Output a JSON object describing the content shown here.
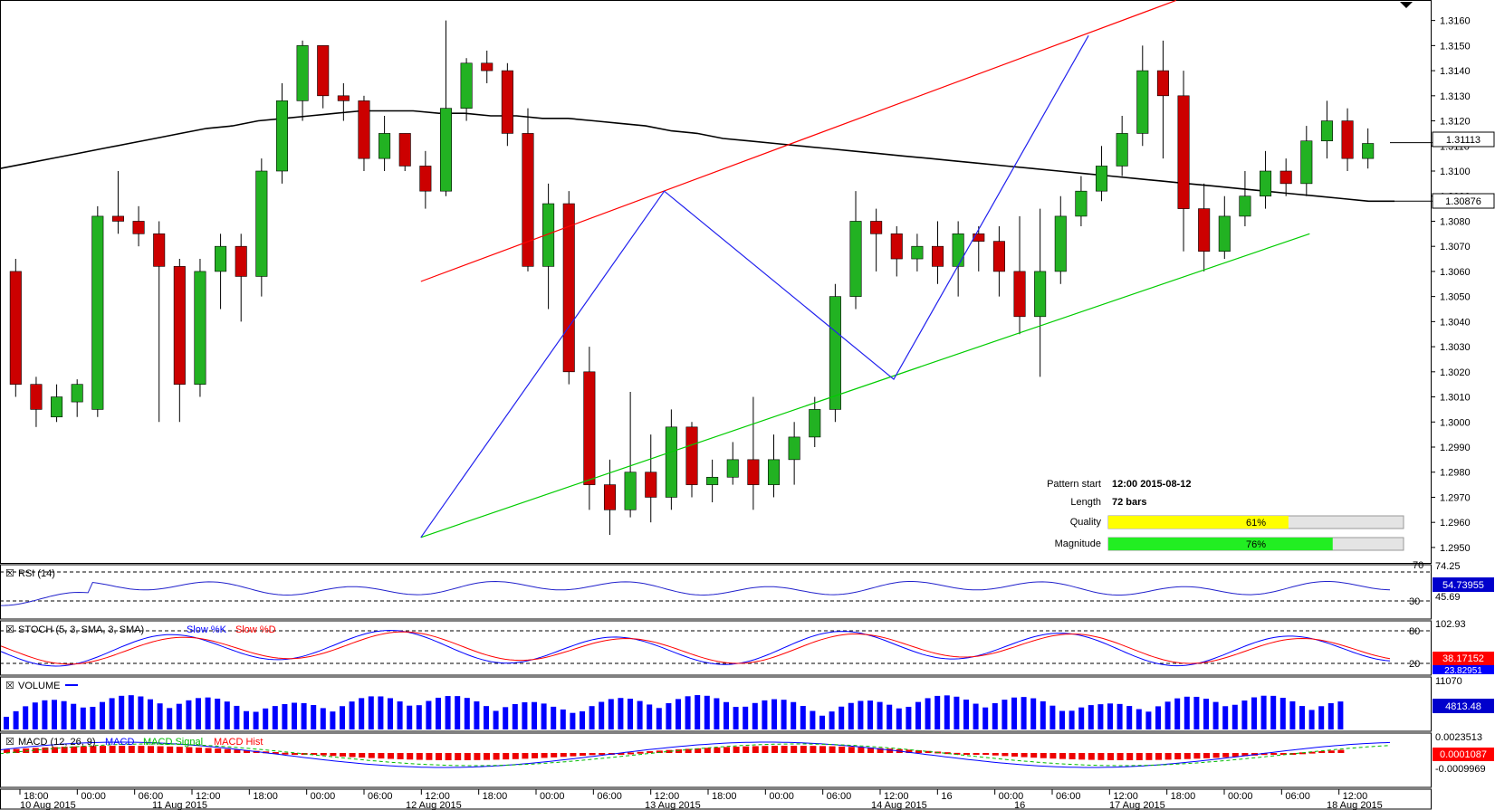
{
  "chart_data": {
    "type": "candlestick",
    "instrument_price_ticks": [
      "1.3160",
      "1.3150",
      "1.3140",
      "1.3130",
      "1.3120",
      "1.3110",
      "1.3100",
      "1.3090",
      "1.3080",
      "1.3070",
      "1.3060",
      "1.3050",
      "1.3040",
      "1.3030",
      "1.3020",
      "1.3010",
      "1.3000",
      "1.2990",
      "1.2980",
      "1.2970",
      "1.2960",
      "1.2950"
    ],
    "ylim": [
      1.2946,
      1.3166
    ],
    "current_price": "1.31113",
    "ma_price": "1.30876",
    "ma_series": [
      1.3101,
      1.3103,
      1.3105,
      1.3107,
      1.3109,
      1.3111,
      1.3113,
      1.3115,
      1.3117,
      1.3118,
      1.312,
      1.3121,
      1.3122,
      1.3123,
      1.3124,
      1.3124,
      1.3124,
      1.3123,
      1.3123,
      1.3122,
      1.3122,
      1.3121,
      1.3121,
      1.312,
      1.3119,
      1.3118,
      1.3116,
      1.3115,
      1.3113,
      1.3112,
      1.3111,
      1.311,
      1.3109,
      1.3108,
      1.3107,
      1.3106,
      1.3105,
      1.3104,
      1.3103,
      1.3102,
      1.3101,
      1.31,
      1.3099,
      1.3098,
      1.3097,
      1.3096,
      1.3095,
      1.3094,
      1.3093,
      1.3092,
      1.3091,
      1.309,
      1.3089,
      1.3088,
      1.3088
    ],
    "candles": [
      [
        1.306,
        1.3015,
        1.3065,
        1.301
      ],
      [
        1.3015,
        1.3005,
        1.3018,
        1.2998
      ],
      [
        1.3002,
        1.301,
        1.3015,
        1.3
      ],
      [
        1.3008,
        1.3015,
        1.3017,
        1.3002
      ],
      [
        1.3005,
        1.3082,
        1.3086,
        1.3002
      ],
      [
        1.3082,
        1.308,
        1.31,
        1.3075
      ],
      [
        1.308,
        1.3075,
        1.3086,
        1.307
      ],
      [
        1.3075,
        1.3062,
        1.308,
        1.3
      ],
      [
        1.3062,
        1.3015,
        1.3065,
        1.3
      ],
      [
        1.3015,
        1.306,
        1.3065,
        1.301
      ],
      [
        1.306,
        1.307,
        1.3075,
        1.3045
      ],
      [
        1.307,
        1.3058,
        1.3075,
        1.304
      ],
      [
        1.3058,
        1.31,
        1.3105,
        1.305
      ],
      [
        1.31,
        1.3128,
        1.3135,
        1.3095
      ],
      [
        1.3128,
        1.315,
        1.3152,
        1.312
      ],
      [
        1.315,
        1.313,
        1.315,
        1.3125
      ],
      [
        1.313,
        1.3128,
        1.3135,
        1.312
      ],
      [
        1.3128,
        1.3105,
        1.313,
        1.31
      ],
      [
        1.3105,
        1.3115,
        1.3122,
        1.31
      ],
      [
        1.3115,
        1.3102,
        1.3115,
        1.31
      ],
      [
        1.3102,
        1.3092,
        1.3108,
        1.3085
      ],
      [
        1.3092,
        1.3125,
        1.316,
        1.309
      ],
      [
        1.3125,
        1.3143,
        1.3145,
        1.312
      ],
      [
        1.3143,
        1.314,
        1.3148,
        1.3135
      ],
      [
        1.314,
        1.3115,
        1.3143,
        1.311
      ],
      [
        1.3115,
        1.3062,
        1.3125,
        1.306
      ],
      [
        1.3062,
        1.3087,
        1.3095,
        1.3045
      ],
      [
        1.3087,
        1.302,
        1.3092,
        1.3015
      ],
      [
        1.302,
        1.2975,
        1.303,
        1.2965
      ],
      [
        1.2975,
        1.2965,
        1.2985,
        1.2955
      ],
      [
        1.2965,
        1.298,
        1.3012,
        1.2962
      ],
      [
        1.298,
        1.297,
        1.2995,
        1.296
      ],
      [
        1.297,
        1.2998,
        1.3005,
        1.2965
      ],
      [
        1.2998,
        1.2975,
        1.3,
        1.297
      ],
      [
        1.2975,
        1.2978,
        1.2985,
        1.2968
      ],
      [
        1.2978,
        1.2985,
        1.2992,
        1.2975
      ],
      [
        1.2985,
        1.2975,
        1.301,
        1.2965
      ],
      [
        1.2975,
        1.2985,
        1.2995,
        1.297
      ],
      [
        1.2985,
        1.2994,
        1.3,
        1.2975
      ],
      [
        1.2994,
        1.3005,
        1.301,
        1.299
      ],
      [
        1.3005,
        1.305,
        1.3055,
        1.3
      ],
      [
        1.305,
        1.308,
        1.3092,
        1.3045
      ],
      [
        1.308,
        1.3075,
        1.3085,
        1.306
      ],
      [
        1.3075,
        1.3065,
        1.3078,
        1.3058
      ],
      [
        1.3065,
        1.307,
        1.3075,
        1.306
      ],
      [
        1.307,
        1.3062,
        1.308,
        1.3055
      ],
      [
        1.3062,
        1.3075,
        1.308,
        1.305
      ],
      [
        1.3075,
        1.3072,
        1.3078,
        1.306
      ],
      [
        1.3072,
        1.306,
        1.3078,
        1.305
      ],
      [
        1.306,
        1.3042,
        1.3082,
        1.3035
      ],
      [
        1.3042,
        1.306,
        1.3085,
        1.3018
      ],
      [
        1.306,
        1.3082,
        1.309,
        1.3055
      ],
      [
        1.3082,
        1.3092,
        1.3098,
        1.3078
      ],
      [
        1.3092,
        1.3102,
        1.311,
        1.3088
      ],
      [
        1.3102,
        1.3115,
        1.3122,
        1.3098
      ],
      [
        1.3115,
        1.314,
        1.315,
        1.311
      ],
      [
        1.314,
        1.313,
        1.3152,
        1.3105
      ],
      [
        1.313,
        1.3085,
        1.314,
        1.3068
      ],
      [
        1.3085,
        1.3068,
        1.3095,
        1.306
      ],
      [
        1.3068,
        1.3082,
        1.309,
        1.3065
      ],
      [
        1.3082,
        1.309,
        1.31,
        1.3078
      ],
      [
        1.309,
        1.31,
        1.3108,
        1.3085
      ],
      [
        1.31,
        1.3095,
        1.3105,
        1.309
      ],
      [
        1.3095,
        1.3112,
        1.3118,
        1.309
      ],
      [
        1.3112,
        1.312,
        1.3128,
        1.3105
      ],
      [
        1.312,
        1.3105,
        1.3125,
        1.31
      ],
      [
        1.3105,
        1.3111,
        1.3117,
        1.3101
      ]
    ],
    "pattern_lines": {
      "resistance": [
        [
          0.3,
          1.3056
        ],
        [
          0.843,
          1.3168
        ]
      ],
      "support": [
        [
          0.3,
          1.2954
        ],
        [
          0.939,
          1.3075
        ]
      ],
      "zigzag": [
        [
          0.3,
          1.2954
        ],
        [
          0.475,
          1.3092
        ],
        [
          0.64,
          1.3017
        ],
        [
          0.78,
          1.3154
        ]
      ]
    },
    "pattern_info": {
      "start_label": "Pattern start",
      "start_value": "12:00 2015-08-12",
      "length_label": "Length",
      "length_value": "72 bars",
      "quality_label": "Quality",
      "quality_value": 61,
      "quality_text": "61%",
      "magnitude_label": "Magnitude",
      "magnitude_value": 76,
      "magnitude_text": "76%"
    },
    "indicators": {
      "rsi": {
        "title": "RSI (14)",
        "ticks": [
          "74.25",
          "45.69",
          "30"
        ],
        "upper_level_label": "70",
        "current": "54.73955"
      },
      "stoch": {
        "title": "STOCH (5, 3, SMA, 3, SMA)",
        "legend_main": "Slow %K",
        "legend_signal": "Slow %D",
        "ticks": [
          "102.93",
          "80",
          "20"
        ],
        "current_d": "38.17152",
        "current_k": "23.82951"
      },
      "volume": {
        "title": "VOLUME",
        "ticks": [
          "11070"
        ],
        "current": "4813.48"
      },
      "macd": {
        "title": "MACD (12, 26, 9)",
        "legend_main": "MACD",
        "legend_signal": "MACD Signal",
        "legend_hist": "MACD Hist",
        "ticks": [
          "0.0023513",
          "-0.0009969"
        ],
        "current": "0.0001087"
      }
    },
    "time_labels": [
      "18:00",
      "00:00",
      "06:00",
      "12:00",
      "18:00",
      "00:00",
      "06:00",
      "12:00",
      "18:00",
      "00:00",
      "06:00",
      "12:00",
      "18:00",
      "00:00",
      "06:00",
      "12:00",
      "16",
      "00:00",
      "06:00",
      "12:00",
      "18:00",
      "00:00",
      "06:00",
      "12:00"
    ],
    "date_labels": [
      "10 Aug 2015",
      "11 Aug 2015",
      "12 Aug 2015",
      "13 Aug 2015",
      "14 Aug 2015",
      "16",
      "17 Aug 2015",
      "18 Aug 2015"
    ]
  },
  "colors": {
    "bull": "#22b222",
    "bear": "#cc0000",
    "resistance": "#ff0000",
    "support": "#00cc00",
    "zigzag": "#2222ee",
    "ma": "#000000",
    "quality_fill": "#ffff00",
    "magnitude_fill": "#22ee22",
    "volume": "#0000ff"
  }
}
